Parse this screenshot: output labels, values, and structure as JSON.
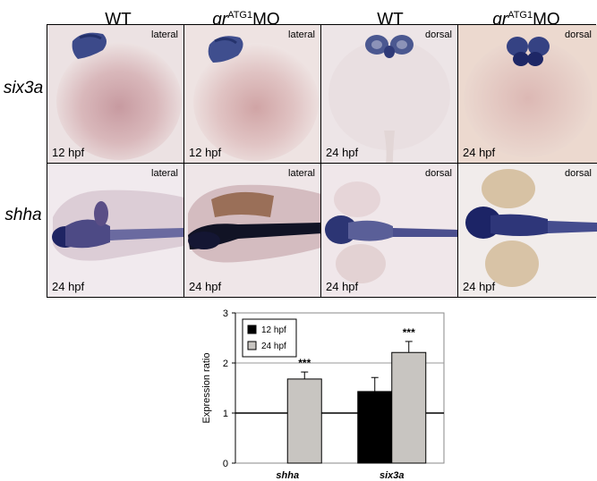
{
  "figure": {
    "columns": [
      {
        "gene": "",
        "label": "WT",
        "sup": "",
        "suffix": ""
      },
      {
        "gene": "gr",
        "label": "",
        "sup": "ATG1",
        "suffix": "MO"
      },
      {
        "gene": "",
        "label": "WT",
        "sup": "",
        "suffix": ""
      },
      {
        "gene": "gr",
        "label": "",
        "sup": "ATG1",
        "suffix": "MO"
      }
    ],
    "rows": [
      {
        "label": "six3a",
        "panels": [
          {
            "view": "lateral",
            "stage": "12 hpf"
          },
          {
            "view": "lateral",
            "stage": "12 hpf"
          },
          {
            "view": "dorsal",
            "stage": "24 hpf"
          },
          {
            "view": "dorsal",
            "stage": "24 hpf"
          }
        ]
      },
      {
        "label": "shha",
        "panels": [
          {
            "view": "lateral",
            "stage": "24 hpf"
          },
          {
            "view": "lateral",
            "stage": "24 hpf"
          },
          {
            "view": "dorsal",
            "stage": "24 hpf"
          },
          {
            "view": "dorsal",
            "stage": "24 hpf"
          }
        ]
      }
    ]
  },
  "chart_data": {
    "type": "bar",
    "categories": [
      "shha",
      "six3a"
    ],
    "series": [
      {
        "name": "12 hpf",
        "color": "#000000",
        "values": [
          null,
          1.43
        ],
        "errors": [
          null,
          0.28
        ]
      },
      {
        "name": "24 hpf",
        "color": "#c8c5c1",
        "values": [
          1.68,
          2.21
        ],
        "errors": [
          0.14,
          0.22
        ]
      }
    ],
    "significance": [
      {
        "category": "shha",
        "series": "24 hpf",
        "label": "***"
      },
      {
        "category": "six3a",
        "series": "24 hpf",
        "label": "***"
      }
    ],
    "ylabel": "Expression ratio",
    "xlabel": "",
    "ylim": [
      0,
      3
    ],
    "yticks": [
      "0",
      "1",
      "2",
      "3"
    ],
    "reference_line": 1,
    "grid": true,
    "legend_position": "top-left"
  }
}
